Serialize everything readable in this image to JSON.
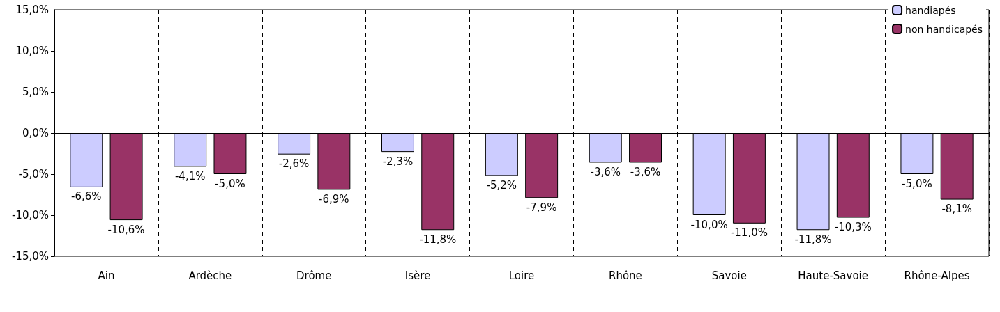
{
  "chart_data": {
    "type": "bar",
    "categories": [
      "Ain",
      "Ardèche",
      "Drôme",
      "Isère",
      "Loire",
      "Rhône",
      "Savoie",
      "Haute-Savoie",
      "Rhône-Alpes"
    ],
    "series": [
      {
        "name": "handiapés",
        "color": "#ccccff",
        "values": [
          -6.6,
          -4.1,
          -2.6,
          -2.3,
          -5.2,
          -3.6,
          -10.0,
          -11.8,
          -5.0
        ],
        "value_labels": [
          "-6,6%",
          "-4,1%",
          "-2,6%",
          "-2,3%",
          "-5,2%",
          "-3,6%",
          "-10,0%",
          "-11,8%",
          "-5,0%"
        ]
      },
      {
        "name": "non handicapés",
        "color": "#993366",
        "values": [
          -10.6,
          -5.0,
          -6.9,
          -11.8,
          -7.9,
          -3.6,
          -11.0,
          -10.3,
          -8.1
        ],
        "value_labels": [
          "-10,6%",
          "-5,0%",
          "-6,9%",
          "-11,8%",
          "-7,9%",
          "-3,6%",
          "-11,0%",
          "-10,3%",
          "-8,1%"
        ]
      }
    ],
    "ylim": [
      -15,
      15
    ],
    "yticks": [
      {
        "value": -15,
        "label": "-15,0%"
      },
      {
        "value": -10,
        "label": "-10,0%"
      },
      {
        "value": -5,
        "label": "-5,0%"
      },
      {
        "value": 0,
        "label": "0,0%"
      },
      {
        "value": 5,
        "label": "5,0%"
      },
      {
        "value": 10,
        "label": "10,0%"
      },
      {
        "value": 15,
        "label": "15,0%"
      }
    ],
    "grid": "x",
    "legend": "top right"
  }
}
